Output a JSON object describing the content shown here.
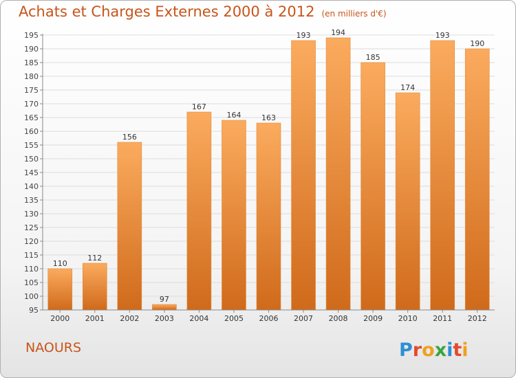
{
  "title": "Achats et Charges Externes 2000 à 2012",
  "subtitle": "(en milliers d'€)",
  "commune": "NAOURS",
  "logo_text": "Proxiti",
  "colors": {
    "bar_light": "#fbab5e",
    "bar_dark": "#d06a1b",
    "title": "#c8541a",
    "grid": "#dcdcdc"
  },
  "chart_data": {
    "type": "bar",
    "title": "Achats et Charges Externes 2000 à 2012",
    "subtitle": "(en milliers d'€)",
    "categories": [
      "2000",
      "2001",
      "2002",
      "2003",
      "2004",
      "2005",
      "2006",
      "2007",
      "2008",
      "2009",
      "2010",
      "2011",
      "2012"
    ],
    "values": [
      110,
      112,
      156,
      97,
      167,
      164,
      163,
      193,
      194,
      185,
      174,
      193,
      190
    ],
    "ylim": [
      95,
      195
    ],
    "yticks": [
      95,
      100,
      105,
      110,
      115,
      120,
      125,
      130,
      135,
      140,
      145,
      150,
      155,
      160,
      165,
      170,
      175,
      180,
      185,
      190,
      195
    ],
    "grid": true,
    "xlabel": "",
    "ylabel": ""
  }
}
